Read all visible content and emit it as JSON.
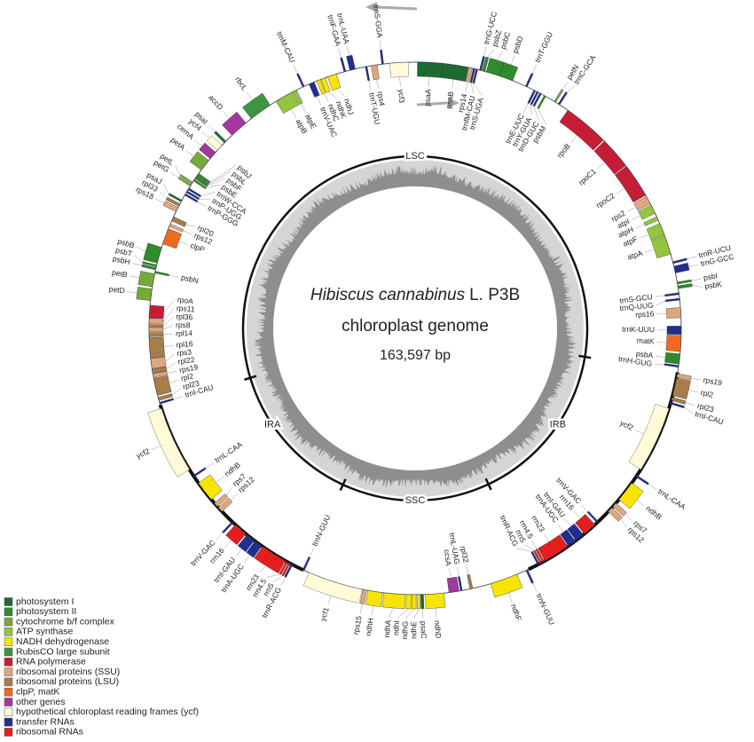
{
  "center": {
    "species": "Hibiscus cannabinus",
    "authority": "L. P3B",
    "subtitle": "chloroplast genome",
    "length": "163,597 bp"
  },
  "regions": [
    "LSC",
    "IRB",
    "SSC",
    "IRA"
  ],
  "legend": [
    {
      "label": "photosystem I",
      "color": "#1d6a32"
    },
    {
      "label": "photosystem II",
      "color": "#2f8b2c"
    },
    {
      "label": "cytochrome b/f complex",
      "color": "#76a83a"
    },
    {
      "label": "ATP synthase",
      "color": "#93c63c"
    },
    {
      "label": "NADH dehydrogenase",
      "color": "#f7e500"
    },
    {
      "label": "RubisCO large subunit",
      "color": "#3d9443"
    },
    {
      "label": "RNA polymerase",
      "color": "#c41d35"
    },
    {
      "label": "ribosomal proteins (SSU)",
      "color": "#e0a67f"
    },
    {
      "label": "ribosomal proteins (LSU)",
      "color": "#a67d4b"
    },
    {
      "label": "clpP, matK",
      "color": "#ee6a20"
    },
    {
      "label": "other genes",
      "color": "#a2379c"
    },
    {
      "label": "hypothetical chloroplast reading frames (ycf)",
      "color": "#fffbd8"
    },
    {
      "label": "transfer RNAs",
      "color": "#1f2f8d"
    },
    {
      "label": "ribosomal RNAs",
      "color": "#e41d1d"
    }
  ],
  "genes": [
    "psaA",
    "psaB",
    "rps14",
    "trnfM-CAU",
    "trnS-UGA",
    "trnG-UCC",
    "psbZ",
    "psbC",
    "psbD",
    "trnT-GGU",
    "trnE-UUC",
    "trnY-GUA",
    "trnD-GUC",
    "psbM",
    "petN",
    "trnC-GCA",
    "rpoB",
    "rpoC1",
    "rpoC2",
    "rps2",
    "atpI",
    "atpH",
    "atpF",
    "atpA",
    "trnR-UCU",
    "trnG-GCC",
    "psbI",
    "psbK",
    "trnS-GCU",
    "trnQ-UUG",
    "rps16",
    "trnK-UUU",
    "matK",
    "psbA",
    "trnH-GUG",
    "rps19",
    "rpl2",
    "rpl23",
    "trnI-CAU",
    "ycf2",
    "trnL-CAA",
    "ndhB",
    "rps7",
    "rps12",
    "trnV-GAC",
    "rrn16",
    "trnI-GAU",
    "trnA-UGC",
    "rrn23",
    "rrn4.5",
    "rrn5",
    "trnR-ACG",
    "trnN-GUU",
    "ndhF",
    "rpl32",
    "trnL-UAG",
    "ccsA",
    "ndhD",
    "psaC",
    "ndhE",
    "ndhG",
    "ndhI",
    "ndhA",
    "ndhH",
    "rps15",
    "ycf1",
    "trnN-GUU",
    "trnR-ACG",
    "rrn5",
    "rrn4.5",
    "rrn23",
    "trnA-UGC",
    "trnI-GAU",
    "rrn16",
    "trnV-GAC",
    "rps12",
    "rps7",
    "ndhB",
    "trnL-CAA",
    "ycf2",
    "trnI-CAU",
    "rpl23",
    "rpl2",
    "rps19",
    "rpl22",
    "rps3",
    "rpl16",
    "rpl14",
    "rps8",
    "rpl36",
    "rps11",
    "rpoA",
    "petD",
    "petB",
    "psbN",
    "psbH",
    "psbT",
    "psbB",
    "clpP",
    "rps12",
    "rpl20",
    "rps18",
    "rpl33",
    "psaJ",
    "trnP-GGG",
    "trnP-UGG",
    "trnW-CCA",
    "petG",
    "petL",
    "psbE",
    "psbF",
    "psbL",
    "psbJ",
    "petA",
    "cemA",
    "ycf4",
    "psaI",
    "accD",
    "rbcL",
    "atpB",
    "atpE",
    "trnM-CAU",
    "trnV-UAC",
    "ndhC",
    "ndhK",
    "ndhJ",
    "trnF-GAA",
    "trnL-UAA",
    "trnT-UGU",
    "rps4",
    "trnS-GGA",
    "ycf3"
  ]
}
